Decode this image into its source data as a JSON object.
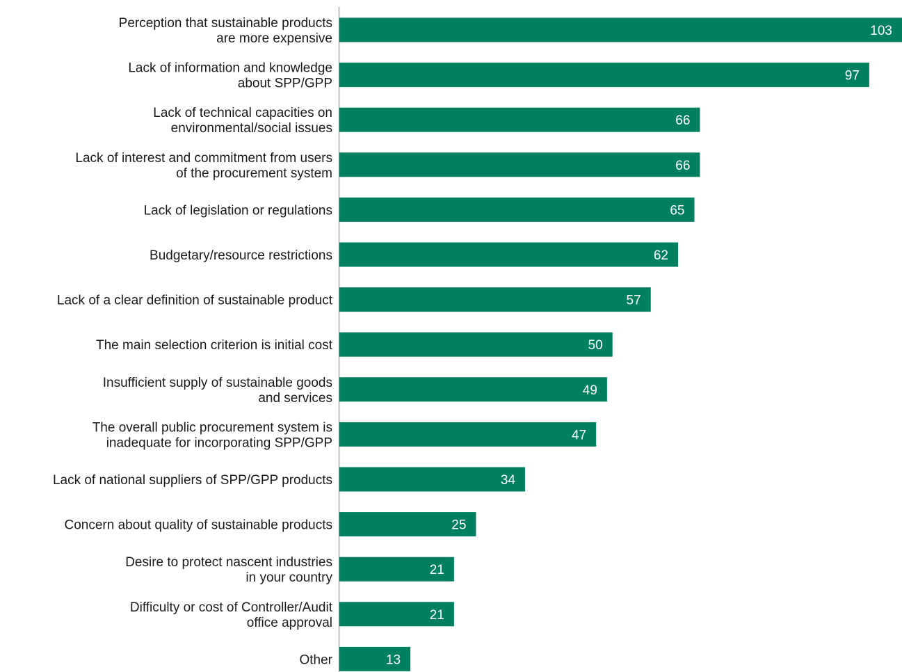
{
  "chart_data": {
    "type": "bar",
    "orientation": "horizontal",
    "title": "",
    "xlabel": "",
    "ylabel": "",
    "categories": [
      [
        "Perception that sustainable products",
        "are more expensive"
      ],
      [
        "Lack of information and knowledge",
        "about SPP/GPP"
      ],
      [
        "Lack of technical capacities on",
        "environmental/social issues"
      ],
      [
        "Lack of interest and commitment from users",
        "of the procurement system"
      ],
      [
        "Lack of legislation or regulations"
      ],
      [
        "Budgetary/resource restrictions"
      ],
      [
        "Lack of a clear definition of sustainable product"
      ],
      [
        "The main selection criterion is initial cost"
      ],
      [
        "Insufficient supply of sustainable goods",
        "and services"
      ],
      [
        "The overall public procurement system is",
        "inadequate for incorporating SPP/GPP"
      ],
      [
        "Lack of national suppliers of SPP/GPP products"
      ],
      [
        "Concern about quality of sustainable products"
      ],
      [
        "Desire to protect nascent industries",
        "in your country"
      ],
      [
        "Difficulty or cost of Controller/Audit",
        "office approval"
      ],
      [
        "Other"
      ]
    ],
    "values": [
      103,
      97,
      66,
      66,
      65,
      62,
      57,
      50,
      49,
      47,
      34,
      25,
      21,
      21,
      13
    ],
    "xlim": [
      0,
      103
    ],
    "grid": false,
    "legend": "none",
    "colors": {
      "bar": "#00805f",
      "value_label": "#ffffff",
      "axis": "#8c8c8c",
      "category_text": "#1a1a1a"
    }
  }
}
